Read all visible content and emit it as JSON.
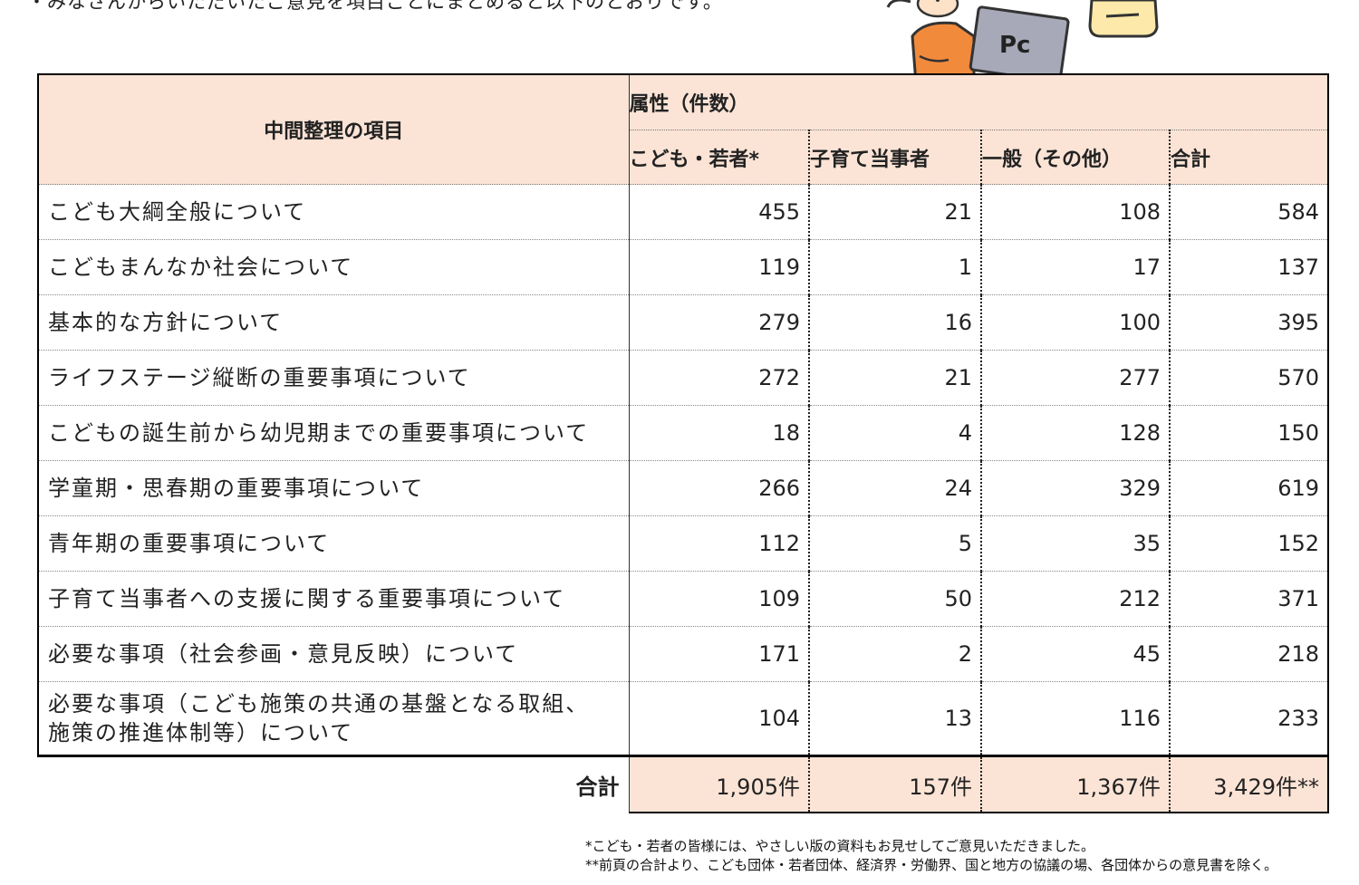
{
  "intro_text": "・みなさんからいただいたご意見を項目ごとにまとめると以下のとおりです。",
  "illustration": {
    "laptop_text": "Pc"
  },
  "table": {
    "items_header": "中間整理の項目",
    "attribute_header": "属性（件数）",
    "columns": [
      "こども・若者*",
      "子育て当事者",
      "一般（その他）",
      "合計"
    ],
    "rows": [
      {
        "item": "こども大綱全般について",
        "values": [
          "455",
          "21",
          "108",
          "584"
        ]
      },
      {
        "item": "こどもまんなか社会について",
        "values": [
          "119",
          "1",
          "17",
          "137"
        ]
      },
      {
        "item": "基本的な方針について",
        "values": [
          "279",
          "16",
          "100",
          "395"
        ]
      },
      {
        "item": "ライフステージ縦断の重要事項について",
        "values": [
          "272",
          "21",
          "277",
          "570"
        ]
      },
      {
        "item": "こどもの誕生前から幼児期までの重要事項について",
        "values": [
          "18",
          "4",
          "128",
          "150"
        ]
      },
      {
        "item": "学童期・思春期の重要事項について",
        "values": [
          "266",
          "24",
          "329",
          "619"
        ]
      },
      {
        "item": "青年期の重要事項について",
        "values": [
          "112",
          "5",
          "35",
          "152"
        ]
      },
      {
        "item": "子育て当事者への支援に関する重要事項について",
        "values": [
          "109",
          "50",
          "212",
          "371"
        ]
      },
      {
        "item": "必要な事項（社会参画・意見反映）について",
        "values": [
          "171",
          "2",
          "45",
          "218"
        ]
      },
      {
        "item_line1": "必要な事項（こども施策の共通の基盤となる取組、",
        "item_line2": "施策の推進体制等）について",
        "values": [
          "104",
          "13",
          "116",
          "233"
        ]
      }
    ],
    "total_label": "合計",
    "totals": [
      "1,905件",
      "157件",
      "1,367件",
      "3,429件**"
    ]
  },
  "notes": [
    "*こども・若者の皆様には、やさしい版の資料もお見せしてご意見いただきました。",
    "**前頁の合計より、こども団体・若者団体、経済界・労働界、国と地方の協議の場、各団体からの意見書を除く。"
  ],
  "colors": {
    "header_bg": "#fbe4d6",
    "border": "#000000"
  }
}
